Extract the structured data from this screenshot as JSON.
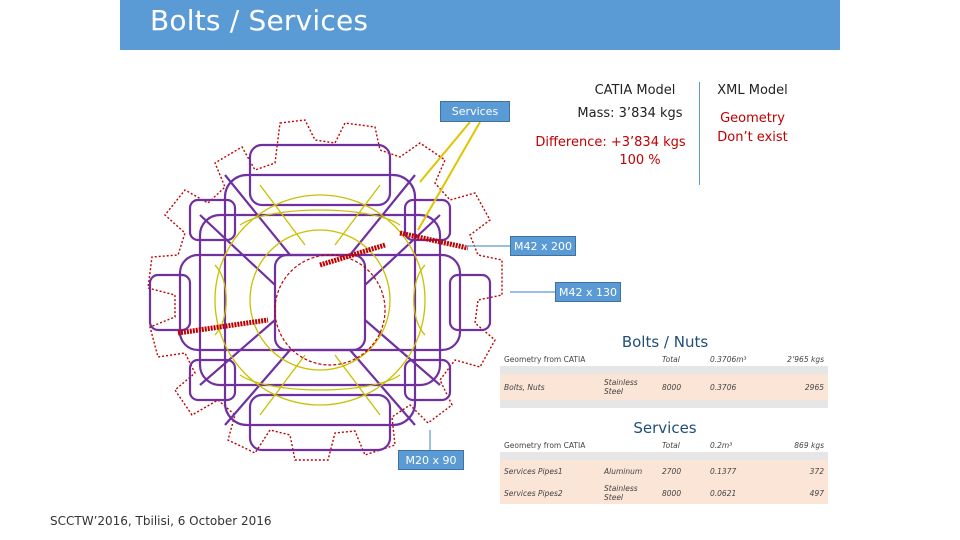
{
  "slide": {
    "title": "Bolts / Services",
    "footer": "SCCTW’2016, Tbilisi, 6 October 2016"
  },
  "tags": {
    "services": "Services",
    "m42_200": "M42 x 200",
    "m42_130": "M42 x 130",
    "m20_90": "M20 x 90"
  },
  "catia": {
    "title": "CATIA Model",
    "mass": "Mass: 3’834 kgs",
    "difference": "Difference:   +3’834 kgs",
    "percent": "100 %"
  },
  "xml": {
    "title": "XML Model",
    "geometry": "Geometry",
    "status": "Don’t exist"
  },
  "bolts_table": {
    "title": "Bolts / Nuts",
    "header": [
      "Geometry from CATIA",
      "",
      "Total",
      "0.3706m³",
      "2’965 kgs"
    ],
    "rows": [
      [
        "Bolts, Nuts",
        "Stainless Steel",
        "8000",
        "0.3706",
        "2965"
      ]
    ]
  },
  "services_table": {
    "title": "Services",
    "header": [
      "Geometry from CATIA",
      "",
      "Total",
      "0.2m³",
      "869 kgs"
    ],
    "rows": [
      [
        "Services Pipes1",
        "Aluminum",
        "2700",
        "0.1377",
        "372"
      ],
      [
        "Services Pipes2",
        "Stainless Steel",
        "8000",
        "0.0621",
        "497"
      ]
    ]
  },
  "colors": {
    "header_bar": "#5b9bd5",
    "highlight_text": "#c00000",
    "structure_purple": "#7030a0",
    "pipes_yellow": "#c9c000",
    "envelope_red": "#c00000"
  }
}
